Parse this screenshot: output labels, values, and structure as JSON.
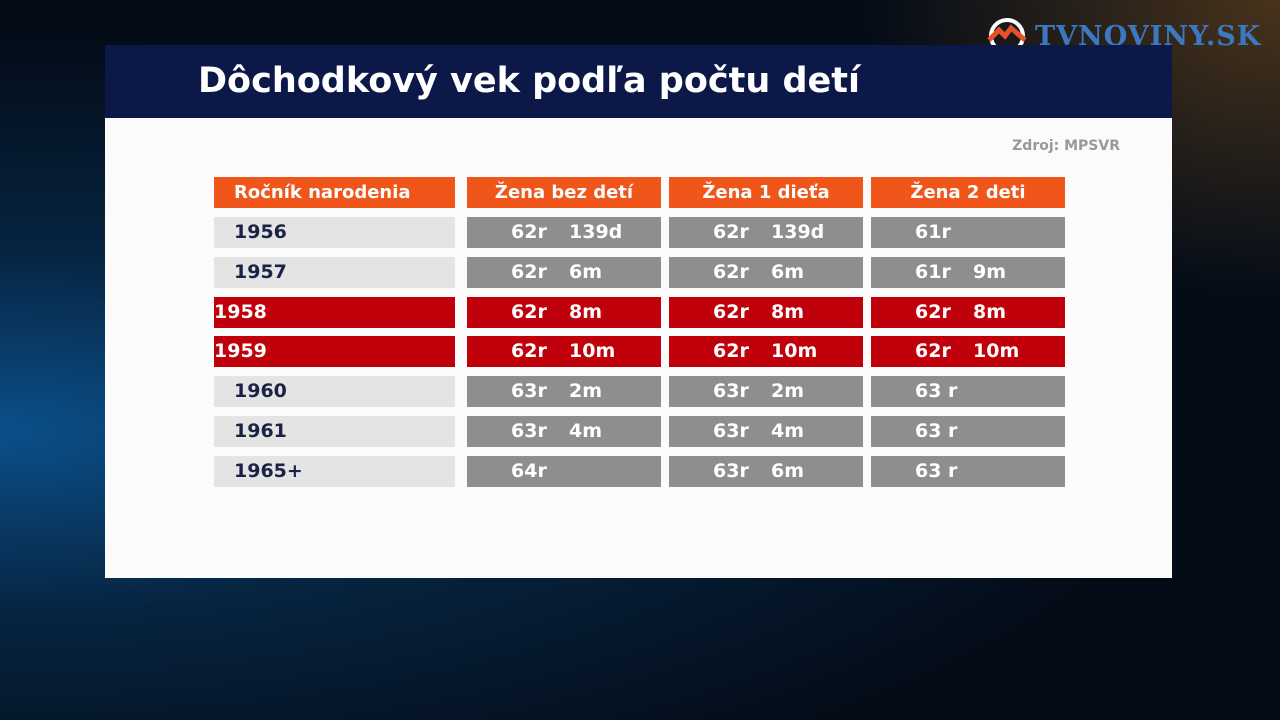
{
  "logo": "TVNOVINY.SK",
  "title": "Dôchodkový vek podľa počtu detí",
  "source": "Zdroj: MPSVR",
  "table": {
    "header": [
      "Ročník narodenia",
      "Žena bez detí",
      "Žena 1 dieťa",
      "Žena 2 deti"
    ],
    "rows": [
      {
        "year": "1956",
        "cells": [
          [
            "62r",
            "139d"
          ],
          [
            "62r",
            "139d"
          ],
          [
            "61r"
          ]
        ],
        "highlight": false
      },
      {
        "year": "1957",
        "cells": [
          [
            "62r",
            "6m"
          ],
          [
            "62r",
            "6m"
          ],
          [
            "61r",
            "9m"
          ]
        ],
        "highlight": false
      },
      {
        "year": "1958",
        "cells": [
          [
            "62r",
            "8m"
          ],
          [
            "62r",
            "8m"
          ],
          [
            "62r",
            "8m"
          ]
        ],
        "highlight": true
      },
      {
        "year": "1959",
        "cells": [
          [
            "62r",
            "10m"
          ],
          [
            "62r",
            "10m"
          ],
          [
            "62r",
            "10m"
          ]
        ],
        "highlight": true
      },
      {
        "year": "1960",
        "cells": [
          [
            "63r",
            "2m"
          ],
          [
            "63r",
            "2m"
          ],
          [
            "63 r"
          ]
        ],
        "highlight": false
      },
      {
        "year": "1961",
        "cells": [
          [
            "63r",
            "4m"
          ],
          [
            "63r",
            "4m"
          ],
          [
            "63 r"
          ]
        ],
        "highlight": false
      },
      {
        "year": "1965+",
        "cells": [
          [
            "64r"
          ],
          [
            "63r",
            "6m"
          ],
          [
            "63 r"
          ]
        ],
        "highlight": false
      }
    ]
  }
}
